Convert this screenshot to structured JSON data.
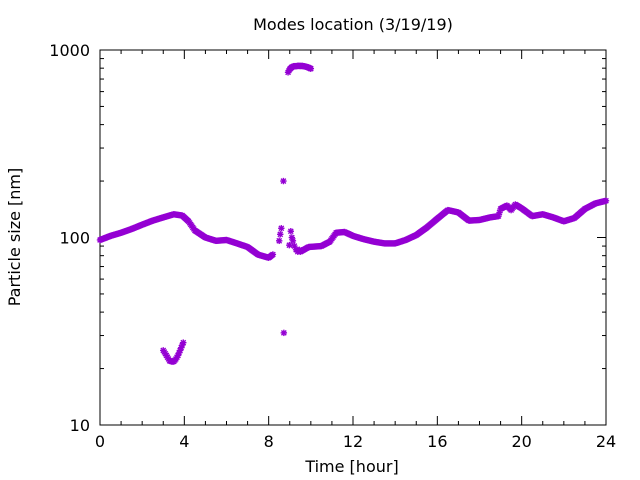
{
  "chart_data": {
    "type": "scatter",
    "title": "Modes location (3/19/19)",
    "xlabel": "Time [hour]",
    "ylabel": "Particle size [nm]",
    "xlim": [
      0,
      24
    ],
    "ylim": [
      10,
      1000
    ],
    "yscale": "log",
    "xticks": [
      0,
      4,
      8,
      12,
      16,
      20,
      24
    ],
    "xtick_labels": [
      "0",
      "4",
      "8",
      "12",
      "16",
      "20",
      "24"
    ],
    "yticks": [
      10,
      100,
      1000
    ],
    "ytick_labels": [
      "10",
      "100",
      "1000"
    ],
    "grid": false,
    "marker_color": "#9400D3",
    "series": [
      {
        "main_mode_anchors": [
          [
            0.0,
            97
          ],
          [
            0.5,
            102
          ],
          [
            1.0,
            106
          ],
          [
            1.5,
            111
          ],
          [
            2.0,
            117
          ],
          [
            2.5,
            123
          ],
          [
            3.0,
            128
          ],
          [
            3.5,
            133
          ],
          [
            3.9,
            131
          ],
          [
            4.2,
            122
          ],
          [
            4.5,
            109
          ],
          [
            5.0,
            100
          ],
          [
            5.5,
            96
          ],
          [
            6.0,
            97
          ],
          [
            6.5,
            93
          ],
          [
            7.0,
            89
          ],
          [
            7.5,
            81
          ],
          [
            8.0,
            78
          ],
          [
            8.25,
            82
          ],
          [
            9.5,
            84
          ],
          [
            9.9,
            89
          ],
          [
            10.5,
            90
          ],
          [
            10.9,
            95
          ],
          [
            11.2,
            106
          ],
          [
            11.6,
            107
          ],
          [
            12.0,
            102
          ],
          [
            12.5,
            98
          ],
          [
            13.0,
            95
          ],
          [
            13.5,
            93
          ],
          [
            14.0,
            93
          ],
          [
            14.5,
            97
          ],
          [
            15.0,
            103
          ],
          [
            15.5,
            113
          ],
          [
            16.0,
            126
          ],
          [
            16.5,
            140
          ],
          [
            17.0,
            136
          ],
          [
            17.5,
            123
          ],
          [
            18.0,
            124
          ],
          [
            18.5,
            128
          ],
          [
            18.9,
            130
          ],
          [
            19.0,
            142
          ],
          [
            19.3,
            148
          ],
          [
            19.5,
            140
          ],
          [
            19.7,
            150
          ],
          [
            20.0,
            143
          ],
          [
            20.5,
            130
          ],
          [
            21.0,
            133
          ],
          [
            21.5,
            128
          ],
          [
            22.0,
            122
          ],
          [
            22.5,
            127
          ],
          [
            23.0,
            142
          ],
          [
            23.5,
            152
          ],
          [
            24.0,
            157
          ]
        ],
        "large_mode": [
          [
            8.92,
            760
          ],
          [
            9.0,
            790
          ],
          [
            9.1,
            810
          ],
          [
            9.2,
            820
          ],
          [
            9.3,
            820
          ],
          [
            9.4,
            823
          ],
          [
            9.5,
            822
          ],
          [
            9.6,
            822
          ],
          [
            9.7,
            818
          ],
          [
            9.8,
            813
          ],
          [
            9.9,
            805
          ],
          [
            10.0,
            795
          ]
        ],
        "small_mode": [
          [
            3.0,
            25
          ],
          [
            3.1,
            24
          ],
          [
            3.2,
            23
          ],
          [
            3.3,
            22
          ],
          [
            3.4,
            21.8
          ],
          [
            3.5,
            21.8
          ],
          [
            3.6,
            22.5
          ],
          [
            3.7,
            23.5
          ],
          [
            3.8,
            25
          ],
          [
            3.95,
            27.5
          ]
        ],
        "scattered_points": [
          [
            8.5,
            96
          ],
          [
            8.55,
            104
          ],
          [
            8.6,
            112
          ],
          [
            8.7,
            200
          ],
          [
            8.72,
            31
          ],
          [
            8.98,
            91
          ],
          [
            9.05,
            108
          ],
          [
            9.1,
            100
          ],
          [
            9.15,
            96
          ],
          [
            9.22,
            90
          ],
          [
            9.3,
            86
          ],
          [
            9.38,
            84
          ],
          [
            9.45,
            86
          ]
        ]
      }
    ]
  }
}
